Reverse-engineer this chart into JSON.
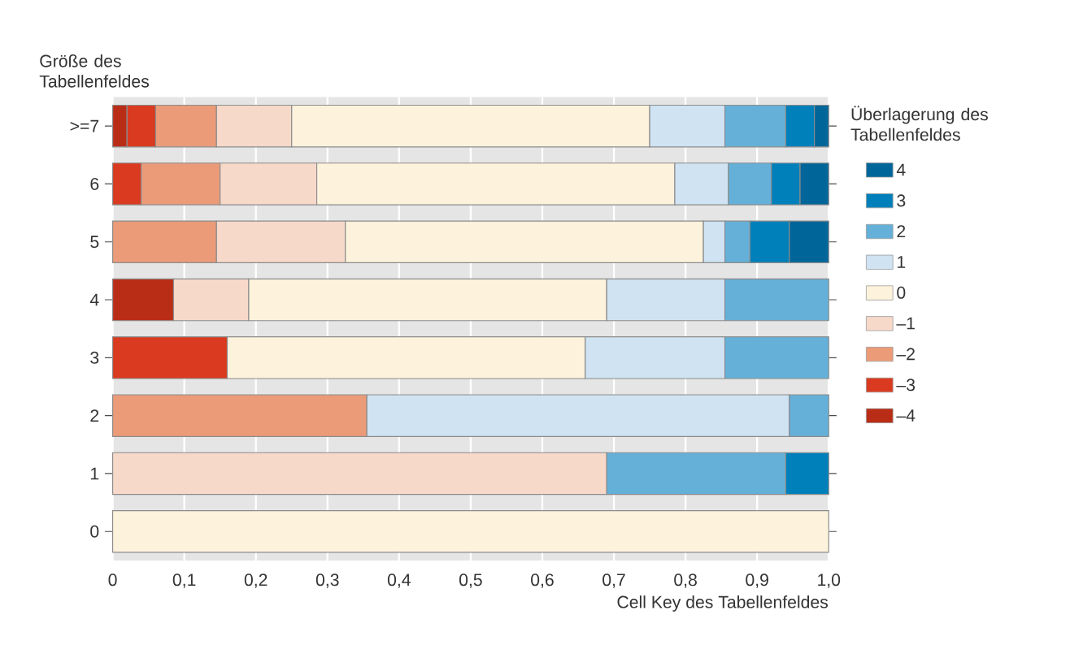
{
  "chart_data": {
    "type": "bar",
    "orientation": "horizontal",
    "stacked": true,
    "ylabel": "Größe des Tabellenfeldes",
    "xlabel": "Cell Key des Tabellenfeldes",
    "legend_title": "Überlagerung des Tabellenfeldes",
    "categories": [
      ">=7",
      "6",
      "5",
      "4",
      "3",
      "2",
      "1",
      "0"
    ],
    "series": [
      {
        "name": "–4",
        "color": "#b92d16",
        "values": [
          0.02,
          null,
          null,
          0.085,
          null,
          null,
          null,
          null
        ]
      },
      {
        "name": "–3",
        "color": "#da3a1f",
        "values": [
          0.04,
          0.04,
          null,
          null,
          0.16,
          null,
          null,
          null
        ]
      },
      {
        "name": "–2",
        "color": "#eb9b78",
        "values": [
          0.085,
          0.11,
          0.145,
          null,
          null,
          0.355,
          null,
          null
        ]
      },
      {
        "name": "–1",
        "color": "#f7d9ca",
        "values": [
          0.105,
          0.135,
          0.18,
          0.105,
          null,
          null,
          0.69,
          null
        ]
      },
      {
        "name": "0",
        "color": "#fdf2dc",
        "values": [
          0.5,
          0.5,
          0.5,
          0.5,
          0.5,
          null,
          null,
          1.0
        ]
      },
      {
        "name": "1",
        "color": "#cfe3f2",
        "values": [
          0.105,
          0.075,
          0.03,
          0.165,
          0.195,
          0.59,
          null,
          null
        ]
      },
      {
        "name": "2",
        "color": "#65b0d8",
        "values": [
          0.085,
          0.06,
          0.035,
          0.145,
          0.145,
          0.055,
          0.25,
          null
        ]
      },
      {
        "name": "3",
        "color": "#0080bb",
        "values": [
          0.04,
          0.04,
          0.055,
          null,
          null,
          null,
          0.06,
          null
        ]
      },
      {
        "name": "4",
        "color": "#00669a",
        "values": [
          0.02,
          0.04,
          0.055,
          null,
          null,
          null,
          null,
          null
        ]
      }
    ],
    "xlim": [
      0,
      1.0
    ],
    "xticks": [
      {
        "value": 0,
        "label": "0"
      },
      {
        "value": 0.1,
        "label": "0,1"
      },
      {
        "value": 0.2,
        "label": "0,2"
      },
      {
        "value": 0.3,
        "label": "0,3"
      },
      {
        "value": 0.4,
        "label": "0,4"
      },
      {
        "value": 0.5,
        "label": "0,5"
      },
      {
        "value": 0.6,
        "label": "0,6"
      },
      {
        "value": 0.7,
        "label": "0,7"
      },
      {
        "value": 0.8,
        "label": "0,8"
      },
      {
        "value": 0.9,
        "label": "0,9"
      },
      {
        "value": 1.0,
        "label": "1,0"
      }
    ],
    "grid": "x",
    "legend": "right"
  }
}
